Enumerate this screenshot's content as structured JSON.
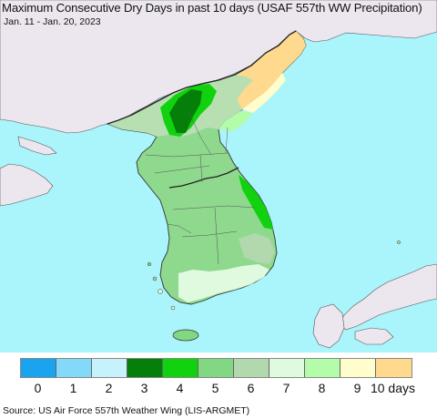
{
  "map": {
    "title": "Maximum Consecutive Dry Days in past 10 days (USAF 557th WW Precipitation)",
    "date_range": "Jan. 11 - Jan. 20, 2023",
    "colors": {
      "ocean": "#aaf4fb",
      "land_outside": "#ece7ee",
      "border": "#222222"
    }
  },
  "legend": {
    "colors": [
      "#1aa3ef",
      "#83d9f8",
      "#c5f2fb",
      "#067e0a",
      "#11d20f",
      "#82d782",
      "#b2d8ae",
      "#dffadf",
      "#b2fcaa",
      "#fffdcc",
      "#ffd98e"
    ],
    "labels": [
      "0",
      "1",
      "2",
      "3",
      "4",
      "5",
      "6",
      "7",
      "8",
      "9",
      "10 days"
    ]
  },
  "footer": {
    "source": "Source: US Air Force 557th Weather Wing (LIS-ARGMET)"
  }
}
